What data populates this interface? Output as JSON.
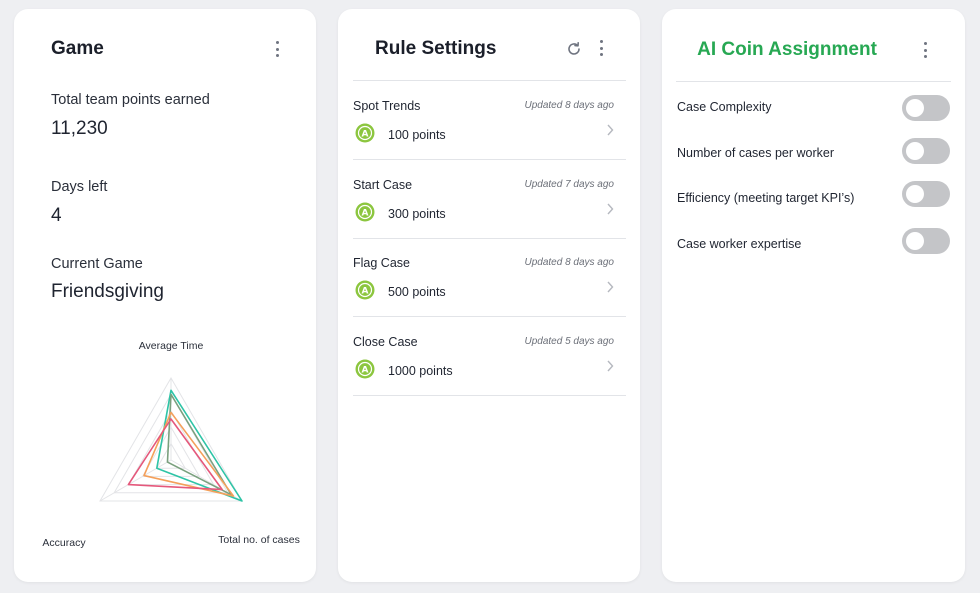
{
  "game": {
    "title": "Game",
    "stats": [
      {
        "label": "Total team points earned",
        "value": "11,230"
      },
      {
        "label": "Days left",
        "value": "4"
      },
      {
        "label": "Current Game",
        "value": "Friendsgiving"
      }
    ]
  },
  "chart_data": {
    "type": "radar",
    "axes": [
      "Average Time",
      "Total no. of cases",
      "Accuracy"
    ],
    "rings": 5,
    "max": 1,
    "grid": true,
    "series": [
      {
        "color": "#2ec4a6",
        "values": [
          0.85,
          1.0,
          0.2
        ]
      },
      {
        "color": "#7aa07e",
        "values": [
          0.8,
          0.85,
          0.05
        ]
      },
      {
        "color": "#f4a05a",
        "values": [
          0.58,
          0.88,
          0.38
        ]
      },
      {
        "color": "#e5587b",
        "values": [
          0.5,
          0.72,
          0.6
        ]
      }
    ]
  },
  "rules": {
    "title": "Rule Settings",
    "items": [
      {
        "name": "Spot Trends",
        "updated": "Updated 8 days ago",
        "points": "100 points"
      },
      {
        "name": "Start Case",
        "updated": "Updated 7 days ago",
        "points": "300 points"
      },
      {
        "name": "Flag Case",
        "updated": "Updated 8 days ago",
        "points": "500 points"
      },
      {
        "name": "Close Case",
        "updated": "Updated 5 days ago",
        "points": "1000 points"
      }
    ],
    "coin_color": "#8cc63f"
  },
  "ai": {
    "title": "AI Coin Assignment",
    "title_color": "#27a853",
    "options": [
      {
        "label": "Case Complexity",
        "enabled": false
      },
      {
        "label": "Number of cases per worker",
        "enabled": false
      },
      {
        "label": "Efficiency (meeting target KPI’s)",
        "enabled": false
      },
      {
        "label": "Case worker expertise",
        "enabled": false
      }
    ]
  }
}
